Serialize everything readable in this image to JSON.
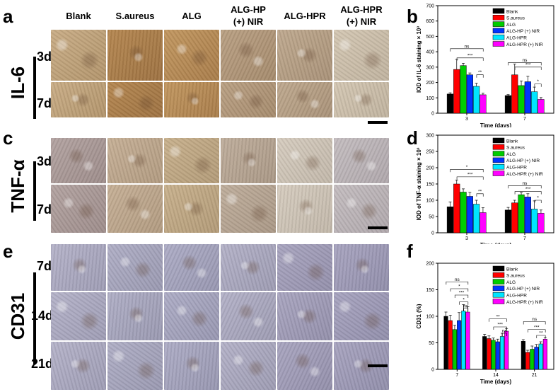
{
  "panels": {
    "a": "a",
    "b": "b",
    "c": "c",
    "d": "d",
    "e": "e",
    "f": "f"
  },
  "columns": [
    "Blank",
    "S.aureus",
    "ALG",
    "ALG-HP\n(+) NIR",
    "ALG-HPR",
    "ALG-HPR\n(+) NIR"
  ],
  "markers": [
    {
      "name": "IL-6",
      "rows": [
        "3d",
        "7d"
      ]
    },
    {
      "name": "TNF-α",
      "rows": [
        "3d",
        "7d"
      ]
    },
    {
      "name": "CD31",
      "rows": [
        "7d",
        "14d",
        "21d"
      ]
    }
  ],
  "colors": {
    "Blank": "#000000",
    "S.aureus": "#ff0000",
    "ALG": "#00cc00",
    "ALG-HP (+) NIR": "#0033ff",
    "ALG-HPR": "#00e5ff",
    "ALG-HPR (+) NIR": "#ff00ff"
  },
  "chart_data": [
    {
      "id": "b",
      "type": "bar",
      "ylabel": "IOD of IL-6 staining × 10³",
      "xlabel": "Time (days)",
      "ylim": [
        0,
        700
      ],
      "yticks": [
        0,
        100,
        200,
        300,
        400,
        500,
        600,
        700
      ],
      "categories": [
        "3",
        "7"
      ],
      "legend": [
        "Blank",
        "S.aureus",
        "ALG",
        "ALG-HP (+) NIR",
        "ALG-HPR",
        "ALG-HPR (+) NIR"
      ],
      "series": [
        {
          "name": "Blank",
          "values": [
            125,
            115
          ],
          "err": [
            8,
            6
          ]
        },
        {
          "name": "S.aureus",
          "values": [
            285,
            250
          ],
          "err": [
            65,
            70
          ]
        },
        {
          "name": "ALG",
          "values": [
            310,
            180
          ],
          "err": [
            15,
            30
          ]
        },
        {
          "name": "ALG-HP (+) NIR",
          "values": [
            250,
            205
          ],
          "err": [
            12,
            35
          ]
        },
        {
          "name": "ALG-HPR",
          "values": [
            175,
            140
          ],
          "err": [
            20,
            30
          ]
        },
        {
          "name": "ALG-HPR (+) NIR",
          "values": [
            120,
            90
          ],
          "err": [
            10,
            12
          ]
        }
      ],
      "sig": [
        {
          "cat": 0,
          "a": 0,
          "b": 5,
          "y": 420,
          "label": "ns"
        },
        {
          "cat": 0,
          "a": 1,
          "b": 5,
          "y": 360,
          "label": "***"
        },
        {
          "cat": 0,
          "a": 4,
          "b": 5,
          "y": 250,
          "label": "**"
        },
        {
          "cat": 1,
          "a": 0,
          "b": 5,
          "y": 330,
          "label": "ns"
        },
        {
          "cat": 1,
          "a": 1,
          "b": 5,
          "y": 300,
          "label": "***"
        },
        {
          "cat": 1,
          "a": 4,
          "b": 5,
          "y": 190,
          "label": "*"
        }
      ]
    },
    {
      "id": "d",
      "type": "bar",
      "ylabel": "IOD of TNF-α staining × 10³",
      "xlabel": "Time (days)",
      "ylim": [
        0,
        300
      ],
      "yticks": [
        0,
        50,
        100,
        150,
        200,
        250,
        300
      ],
      "categories": [
        "3",
        "7"
      ],
      "legend": [
        "Blank",
        "S.aureus",
        "ALG",
        "ALG-HP (+) NIR",
        "ALG-HPR",
        "ALG-HPR (+) NIR"
      ],
      "series": [
        {
          "name": "Blank",
          "values": [
            80,
            70
          ],
          "err": [
            15,
            8
          ]
        },
        {
          "name": "S.aureus",
          "values": [
            150,
            92
          ],
          "err": [
            12,
            8
          ]
        },
        {
          "name": "ALG",
          "values": [
            125,
            117
          ],
          "err": [
            10,
            7
          ]
        },
        {
          "name": "ALG-HP (+) NIR",
          "values": [
            112,
            110
          ],
          "err": [
            12,
            10
          ]
        },
        {
          "name": "ALG-HPR",
          "values": [
            88,
            73
          ],
          "err": [
            12,
            25
          ]
        },
        {
          "name": "ALG-HPR (+) NIR",
          "values": [
            62,
            60
          ],
          "err": [
            15,
            10
          ]
        }
      ],
      "sig": [
        {
          "cat": 0,
          "a": 0,
          "b": 5,
          "y": 195,
          "label": "*"
        },
        {
          "cat": 0,
          "a": 1,
          "b": 5,
          "y": 172,
          "label": "***"
        },
        {
          "cat": 0,
          "a": 4,
          "b": 5,
          "y": 120,
          "label": "**"
        },
        {
          "cat": 1,
          "a": 0,
          "b": 5,
          "y": 145,
          "label": "ns"
        },
        {
          "cat": 1,
          "a": 1,
          "b": 5,
          "y": 127,
          "label": "***"
        },
        {
          "cat": 1,
          "a": 4,
          "b": 5,
          "y": 100,
          "label": "*"
        }
      ]
    },
    {
      "id": "f",
      "type": "bar",
      "ylabel": "CD31 (%)",
      "xlabel": "Time (days)",
      "ylim": [
        0,
        200
      ],
      "yticks": [
        0,
        50,
        100,
        150,
        200
      ],
      "categories": [
        "7",
        "14",
        "21"
      ],
      "legend": [
        "Blank",
        "S.aureus",
        "ALG",
        "ALG-HP (+) NIR",
        "ALG-HPR",
        "ALG-HPR (+) NIR"
      ],
      "series": [
        {
          "name": "Blank",
          "values": [
            100,
            62,
            53
          ],
          "err": [
            8,
            4,
            3
          ]
        },
        {
          "name": "S.aureus",
          "values": [
            92,
            58,
            32
          ],
          "err": [
            10,
            5,
            4
          ]
        },
        {
          "name": "ALG",
          "values": [
            75,
            55,
            38
          ],
          "err": [
            8,
            4,
            6
          ]
        },
        {
          "name": "ALG-HP (+) NIR",
          "values": [
            92,
            52,
            42
          ],
          "err": [
            15,
            5,
            5
          ]
        },
        {
          "name": "ALG-HPR",
          "values": [
            110,
            62,
            48
          ],
          "err": [
            12,
            6,
            4
          ]
        },
        {
          "name": "ALG-HPR (+) NIR",
          "values": [
            108,
            72,
            57
          ],
          "err": [
            10,
            5,
            3
          ]
        }
      ],
      "sig": [
        {
          "cat": 0,
          "a": 0,
          "b": 5,
          "y": 165,
          "label": "ns"
        },
        {
          "cat": 0,
          "a": 1,
          "b": 5,
          "y": 152,
          "label": "*"
        },
        {
          "cat": 0,
          "a": 2,
          "b": 5,
          "y": 140,
          "label": "***"
        },
        {
          "cat": 0,
          "a": 3,
          "b": 5,
          "y": 127,
          "label": "*"
        },
        {
          "cat": 0,
          "a": 4,
          "b": 5,
          "y": 115,
          "label": "ns"
        },
        {
          "cat": 1,
          "a": 1,
          "b": 5,
          "y": 95,
          "label": "**"
        },
        {
          "cat": 1,
          "a": 2,
          "b": 5,
          "y": 80,
          "label": "***"
        },
        {
          "cat": 1,
          "a": 4,
          "b": 5,
          "y": 68,
          "label": "ns"
        },
        {
          "cat": 2,
          "a": 0,
          "b": 5,
          "y": 90,
          "label": "ns"
        },
        {
          "cat": 2,
          "a": 1,
          "b": 5,
          "y": 75,
          "label": "***"
        },
        {
          "cat": 2,
          "a": 3,
          "b": 5,
          "y": 64,
          "label": "**"
        }
      ]
    }
  ]
}
